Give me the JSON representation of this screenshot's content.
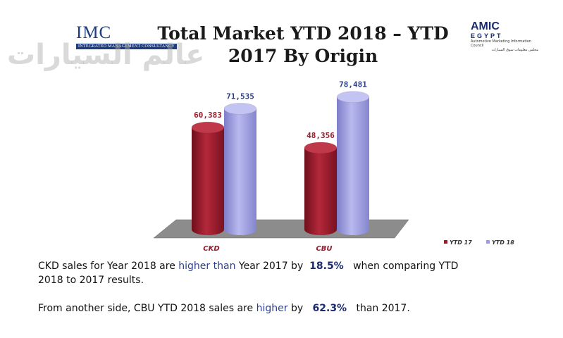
{
  "header": {
    "title_line1": "Total Market YTD 2018 – YTD",
    "title_line2": "2017 By Origin",
    "imc_logo": "IMC",
    "imc_tagline": "INTEGRATED MANAGEMENT CONSULTANCY",
    "watermark": "عالم السيارات",
    "amic_logo": "AMIC",
    "amic_sub": "EGYPT",
    "amic_caption": "Automotive Marketing Information Council",
    "amic_caption_ar": "مجلس معلومات سوق السيارات"
  },
  "chart_data": {
    "type": "bar",
    "categories": [
      "CKD",
      "CBU"
    ],
    "series": [
      {
        "name": "YTD 17",
        "values": [
          60383,
          48356
        ],
        "labels": [
          "60,383",
          "48,356"
        ],
        "color": "#9b1b2a"
      },
      {
        "name": "YTD 18",
        "values": [
          71535,
          78481
        ],
        "labels": [
          "71,535",
          "78,481"
        ],
        "color": "#9c9cdf"
      }
    ],
    "ylim": [
      0,
      90000
    ],
    "legend_position": "bottom-right",
    "grid": false
  },
  "text": {
    "p1_a": "CKD sales for Year 2018 are ",
    "p1_hl": "higher than",
    "p1_b": " Year 2017 by ",
    "p1_pct": "18.5%",
    "p1_c": " when comparing YTD",
    "p1_line2": "2018 to 2017 results.",
    "p2_a": "From another side, CBU YTD 2018 sales are ",
    "p2_hl": "higher",
    "p2_b": " by ",
    "p2_pct": "62.3%",
    "p2_c": " than 2017."
  }
}
